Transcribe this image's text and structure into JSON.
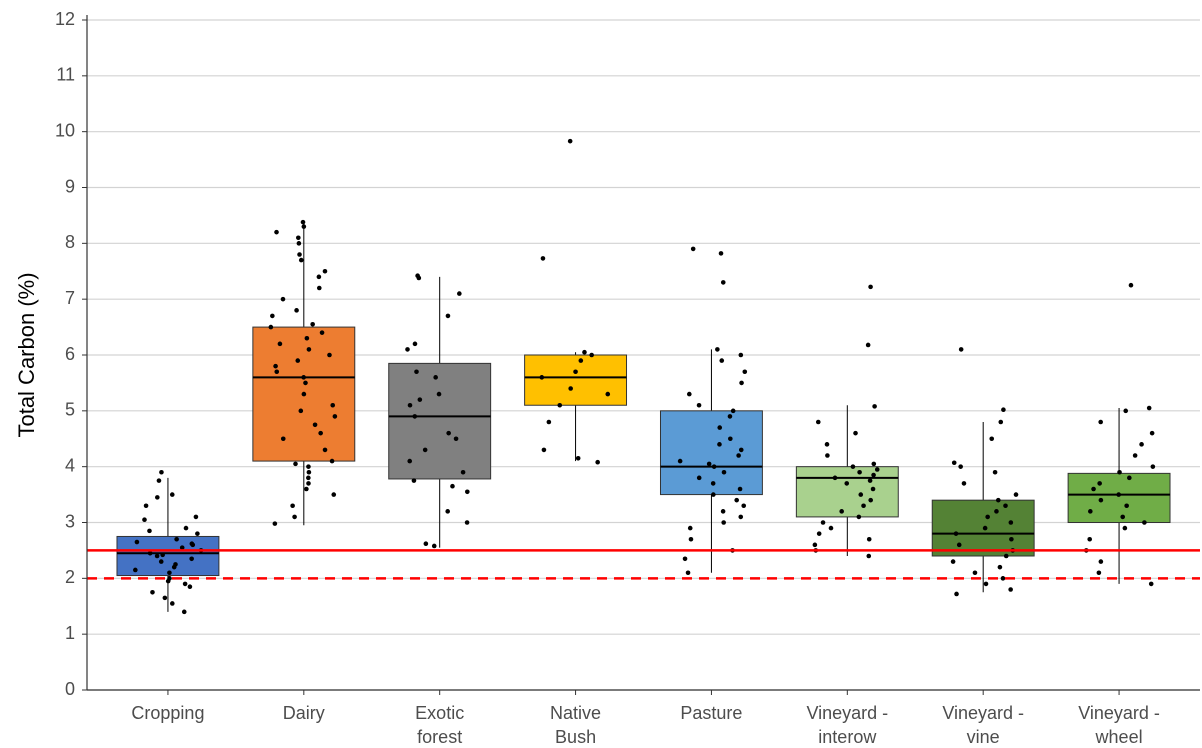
{
  "chart_data": {
    "type": "box",
    "ylabel": "Total Carbon (%)",
    "ylim": [
      0,
      12
    ],
    "yticks": [
      0,
      1,
      2,
      3,
      4,
      5,
      6,
      7,
      8,
      9,
      10,
      11,
      12
    ],
    "grid": true,
    "reference_lines": [
      {
        "value": 2.5,
        "style": "solid",
        "color": "#ff0000"
      },
      {
        "value": 2,
        "style": "dashed",
        "color": "#ff0000"
      }
    ],
    "groups": [
      {
        "label": [
          "Cropping"
        ],
        "color": "#4472c4",
        "whisker_low": 1.4,
        "q1": 2.05,
        "median": 2.45,
        "q3": 2.75,
        "whisker_high": 3.8,
        "points": [
          1.4,
          1.55,
          1.65,
          1.75,
          1.85,
          1.9,
          1.95,
          2.0,
          2.1,
          2.15,
          2.2,
          2.25,
          2.3,
          2.35,
          2.4,
          2.42,
          2.45,
          2.5,
          2.55,
          2.6,
          2.62,
          2.65,
          2.7,
          2.8,
          2.85,
          2.9,
          3.05,
          3.1,
          3.3,
          3.45,
          3.5,
          3.75,
          3.9
        ]
      },
      {
        "label": [
          "Dairy"
        ],
        "color": "#ed7d31",
        "whisker_low": 2.95,
        "q1": 4.1,
        "median": 5.6,
        "q3": 6.5,
        "whisker_high": 8.4,
        "points": [
          2.98,
          3.1,
          3.3,
          3.5,
          3.6,
          3.7,
          3.8,
          3.9,
          4.0,
          4.05,
          4.1,
          4.3,
          4.5,
          4.6,
          4.75,
          4.9,
          5.0,
          5.1,
          5.3,
          5.5,
          5.6,
          5.7,
          5.8,
          5.9,
          6.0,
          6.1,
          6.2,
          6.3,
          6.4,
          6.5,
          6.55,
          6.7,
          6.8,
          7.0,
          7.2,
          7.4,
          7.5,
          7.7,
          7.8,
          8.0,
          8.1,
          8.2,
          8.3,
          8.38
        ]
      },
      {
        "label": [
          "Exotic",
          "forest"
        ],
        "color": "#808080",
        "whisker_low": 2.55,
        "q1": 3.78,
        "median": 4.9,
        "q3": 5.85,
        "whisker_high": 7.4,
        "points": [
          2.58,
          2.62,
          3.0,
          3.2,
          3.55,
          3.65,
          3.75,
          3.9,
          4.1,
          4.3,
          4.5,
          4.6,
          4.9,
          5.1,
          5.2,
          5.3,
          5.6,
          5.7,
          6.1,
          6.2,
          6.7,
          7.1,
          7.38,
          7.42
        ]
      },
      {
        "label": [
          "Native",
          "Bush"
        ],
        "color": "#ffc000",
        "whisker_low": 4.1,
        "q1": 5.1,
        "median": 5.6,
        "q3": 6.0,
        "whisker_high": 6.05,
        "points": [
          4.08,
          4.15,
          4.3,
          4.8,
          5.1,
          5.3,
          5.4,
          5.6,
          5.7,
          5.9,
          6.0,
          6.05,
          7.73,
          9.83
        ]
      },
      {
        "label": [
          "Pasture"
        ],
        "color": "#5b9bd5",
        "whisker_low": 2.1,
        "q1": 3.5,
        "median": 4.0,
        "q3": 5.0,
        "whisker_high": 6.1,
        "points": [
          2.1,
          2.35,
          2.5,
          2.7,
          2.9,
          3.0,
          3.1,
          3.2,
          3.3,
          3.4,
          3.5,
          3.6,
          3.7,
          3.8,
          3.9,
          4.0,
          4.05,
          4.1,
          4.2,
          4.3,
          4.4,
          4.5,
          4.7,
          4.9,
          5.0,
          5.1,
          5.3,
          5.5,
          5.7,
          5.9,
          6.0,
          6.1,
          7.3,
          7.82,
          7.9
        ]
      },
      {
        "label": [
          "Vineyard -",
          "interow"
        ],
        "color": "#a9d18e",
        "whisker_low": 2.4,
        "q1": 3.1,
        "median": 3.8,
        "q3": 4.0,
        "whisker_high": 5.1,
        "points": [
          2.4,
          2.5,
          2.6,
          2.7,
          2.8,
          2.9,
          3.0,
          3.1,
          3.2,
          3.3,
          3.4,
          3.5,
          3.6,
          3.7,
          3.75,
          3.8,
          3.85,
          3.9,
          3.95,
          4.0,
          4.05,
          4.2,
          4.4,
          4.6,
          4.8,
          5.08,
          6.18,
          7.22
        ]
      },
      {
        "label": [
          "Vineyard -",
          "vine"
        ],
        "color": "#548235",
        "whisker_low": 1.75,
        "q1": 2.4,
        "median": 2.8,
        "q3": 3.4,
        "whisker_high": 4.8,
        "points": [
          1.72,
          1.8,
          1.9,
          2.0,
          2.1,
          2.2,
          2.3,
          2.4,
          2.5,
          2.6,
          2.7,
          2.8,
          2.9,
          3.0,
          3.1,
          3.2,
          3.3,
          3.4,
          3.5,
          3.7,
          3.9,
          4.0,
          4.07,
          4.5,
          4.8,
          5.02,
          6.1
        ]
      },
      {
        "label": [
          "Vineyard -",
          "wheel"
        ],
        "color": "#70ad47",
        "whisker_low": 1.9,
        "q1": 3.0,
        "median": 3.5,
        "q3": 3.88,
        "whisker_high": 5.05,
        "points": [
          1.9,
          2.1,
          2.3,
          2.5,
          2.7,
          2.9,
          3.0,
          3.1,
          3.2,
          3.3,
          3.4,
          3.5,
          3.6,
          3.7,
          3.8,
          3.9,
          4.0,
          4.2,
          4.4,
          4.6,
          4.8,
          5.0,
          5.05,
          7.25
        ]
      }
    ]
  }
}
